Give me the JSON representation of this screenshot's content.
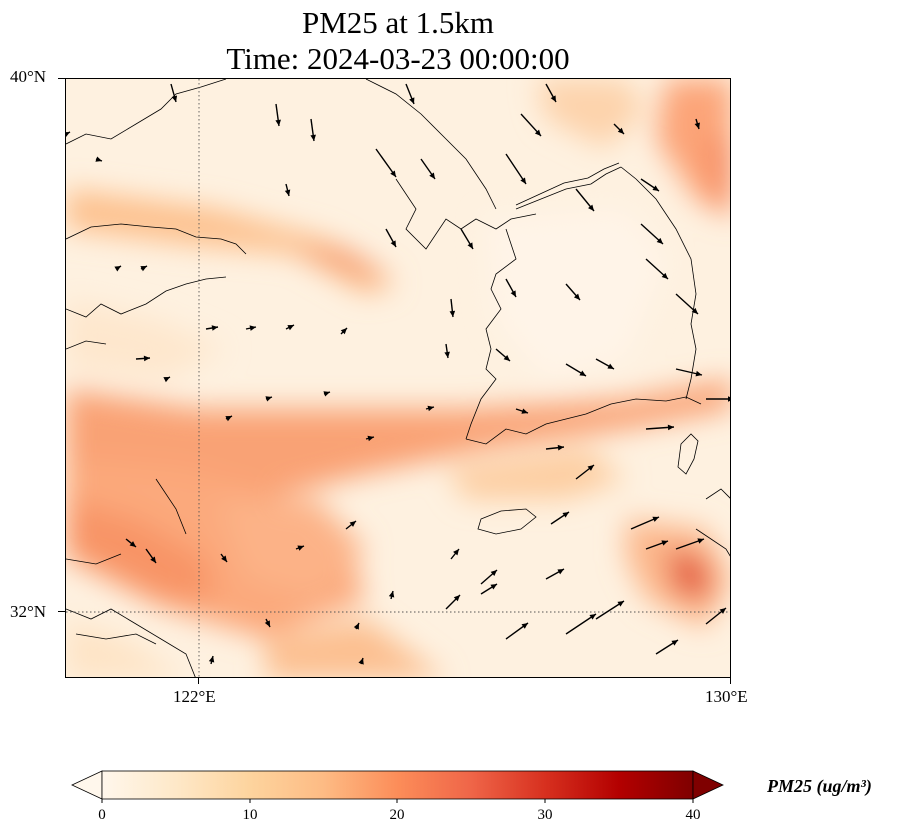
{
  "title": {
    "line1": "PM25 at 1.5km",
    "line2": "Time: 2024-03-23 00:00:00"
  },
  "map": {
    "lat_labels": [
      "40°N",
      "32°N"
    ],
    "lon_labels": [
      "122°E",
      "130°E"
    ],
    "extent": {
      "lon_min": 120,
      "lon_max": 130,
      "lat_min": 31,
      "lat_max": 40
    },
    "gridlines": {
      "lon": 122,
      "lat": 32,
      "style": "dotted"
    },
    "field": "PM25 concentration",
    "wind_vectors": true
  },
  "colorbar": {
    "label": "PM25 (ug/m³)",
    "ticks": [
      "0",
      "10",
      "20",
      "30",
      "40"
    ],
    "colormap": "OrRd",
    "colors": [
      "#fff7ec",
      "#fee8c8",
      "#fdd49e",
      "#fdbb84",
      "#fc8d59",
      "#ef6548",
      "#d7301f",
      "#b30000",
      "#7f0000"
    ],
    "extend": "both"
  }
}
